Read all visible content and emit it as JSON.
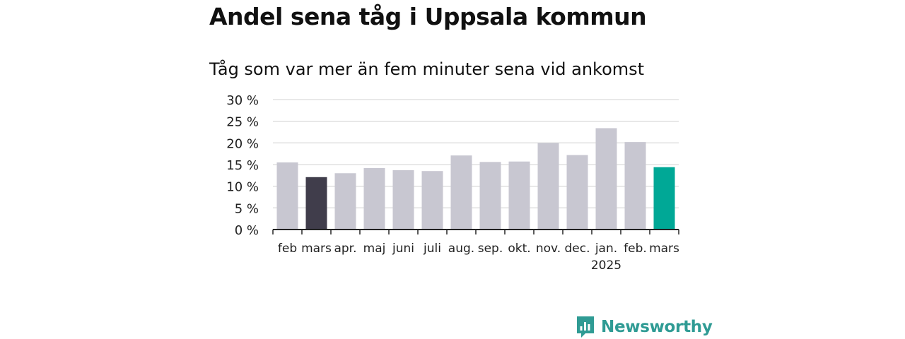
{
  "title": "Andel sena tåg i Uppsala kommun",
  "subtitle": "Tåg som var mer än fem minuter sena vid ankomst",
  "brand": {
    "name": "Newsworthy",
    "icon": "newsworthy-logo-icon",
    "color": "#2f9b94"
  },
  "chart_data": {
    "type": "bar",
    "categories": [
      "feb",
      "mars",
      "apr.",
      "maj",
      "juni",
      "juli",
      "aug.",
      "sep.",
      "okt.",
      "nov.",
      "dec.",
      "jan.",
      "feb.",
      "mars"
    ],
    "year_label": "2025",
    "values": [
      15.5,
      12.1,
      13.0,
      14.2,
      13.7,
      13.5,
      17.1,
      15.6,
      15.7,
      20.0,
      17.2,
      23.4,
      20.2,
      14.4
    ],
    "highlight": {
      "1": "#403d4b",
      "13": "#00a896"
    },
    "bar_color": "#c8c7d1",
    "yticks": [
      0,
      5,
      10,
      15,
      20,
      25,
      30
    ],
    "ytick_labels": [
      "0 %",
      "5 %",
      "10 %",
      "15 %",
      "20 %",
      "25 %",
      "30 %"
    ],
    "ylim": [
      0,
      30
    ],
    "grid": true,
    "xlabel": "",
    "ylabel": ""
  }
}
